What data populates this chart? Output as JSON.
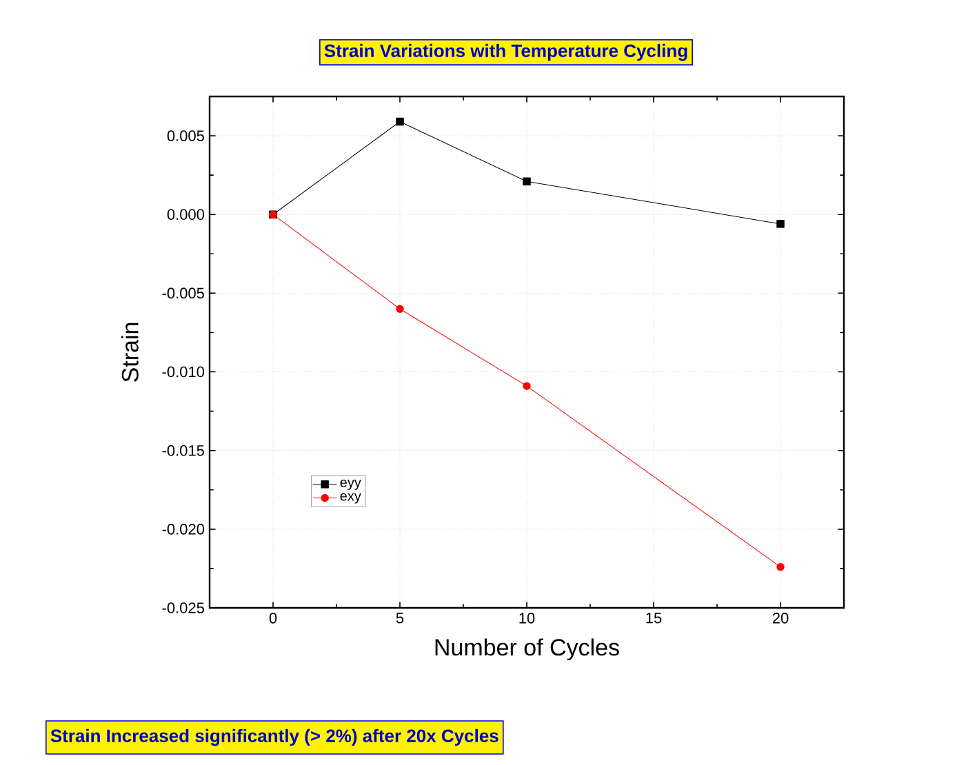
{
  "chart_data": {
    "type": "line",
    "title": "Strain Variations with Temperature Cycling",
    "xlabel": "Number of Cycles",
    "ylabel": "Strain",
    "x": [
      0,
      5,
      10,
      20
    ],
    "series": [
      {
        "name": "eyy",
        "color": "#000000",
        "marker": "square",
        "values": [
          0.0,
          0.0059,
          0.0021,
          -0.0006
        ]
      },
      {
        "name": "exy",
        "color": "#ff0000",
        "marker": "circle",
        "values": [
          0.0,
          -0.006,
          -0.0109,
          -0.0224
        ]
      }
    ],
    "xlim": [
      -2.5,
      22.5
    ],
    "xticks": [
      0,
      5,
      10,
      15,
      20
    ],
    "ylim": [
      -0.025,
      0.0075
    ],
    "yticks": [
      {
        "value": -0.025,
        "label": "-0.025"
      },
      {
        "value": -0.02,
        "label": "-0.020"
      },
      {
        "value": -0.015,
        "label": "-0.015"
      },
      {
        "value": -0.01,
        "label": "-0.010"
      },
      {
        "value": -0.005,
        "label": "-0.005"
      },
      {
        "value": 0,
        "label": "0.000"
      },
      {
        "value": 0.005,
        "label": "0.005"
      }
    ],
    "grid": true,
    "legend": "bottom left",
    "line_style": "solid",
    "annotations": [
      "Strain Increased significantly (> 2%) after 20x Cycles"
    ]
  }
}
